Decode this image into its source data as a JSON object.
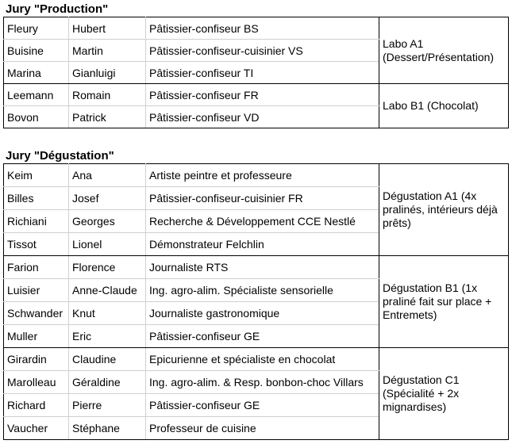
{
  "production": {
    "title": "Jury \"Production\"",
    "groups": [
      {
        "location": "Labo A1 (Dessert/Présentation)",
        "members": [
          {
            "last": "Fleury",
            "first": "Hubert",
            "role": "Pâtissier-confiseur BS"
          },
          {
            "last": "Buisine",
            "first": "Martin",
            "role": "Pâtissier-confiseur-cuisinier VS"
          },
          {
            "last": "Marina",
            "first": "Gianluigi",
            "role": "Pâtissier-confiseur TI"
          }
        ]
      },
      {
        "location": "Labo B1 (Chocolat)",
        "members": [
          {
            "last": "Leemann",
            "first": "Romain",
            "role": "Pâtissier-confiseur FR"
          },
          {
            "last": "Bovon",
            "first": "Patrick",
            "role": "Pâtissier-confiseur VD"
          }
        ]
      }
    ]
  },
  "degustation": {
    "title": "Jury \"Dégustation\"",
    "groups": [
      {
        "location": "Dégustation A1 (4x pralinés, intérieurs déjà prêts)",
        "members": [
          {
            "last": "Keim",
            "first": "Ana",
            "role": "Artiste peintre et professeure"
          },
          {
            "last": "Billes",
            "first": "Josef",
            "role": "Pâtissier-confiseur-cuisinier FR"
          },
          {
            "last": "Richiani",
            "first": "Georges",
            "role": "Recherche & Développement CCE Nestlé"
          },
          {
            "last": "Tissot",
            "first": "Lionel",
            "role": "Démonstrateur Felchlin"
          }
        ]
      },
      {
        "location": "Dégustation B1 (1x praliné fait sur place + Entremets)",
        "members": [
          {
            "last": "Farion",
            "first": "Florence",
            "role": "Journaliste RTS"
          },
          {
            "last": "Luisier",
            "first": "Anne-Claude",
            "role": "Ing. agro-alim. Spécialiste sensorielle"
          },
          {
            "last": "Schwander",
            "first": "Knut",
            "role": "Journaliste gastronomique"
          },
          {
            "last": "Muller",
            "first": "Eric",
            "role": "Pâtissier-confiseur GE"
          }
        ]
      },
      {
        "location": "Dégustation C1 (Spécialité + 2x mignardises)",
        "members": [
          {
            "last": "Girardin",
            "first": "Claudine",
            "role": "Epicurienne et spécialiste en chocolat"
          },
          {
            "last": "Marolleau",
            "first": "Géraldine",
            "role": "Ing. agro-alim. & Resp. bonbon-choc Villars"
          },
          {
            "last": "Richard",
            "first": "Pierre",
            "role": "Pâtissier-confiseur GE"
          },
          {
            "last": "Vaucher",
            "first": "Stéphane",
            "role": "Professeur de cuisine"
          }
        ]
      }
    ]
  }
}
